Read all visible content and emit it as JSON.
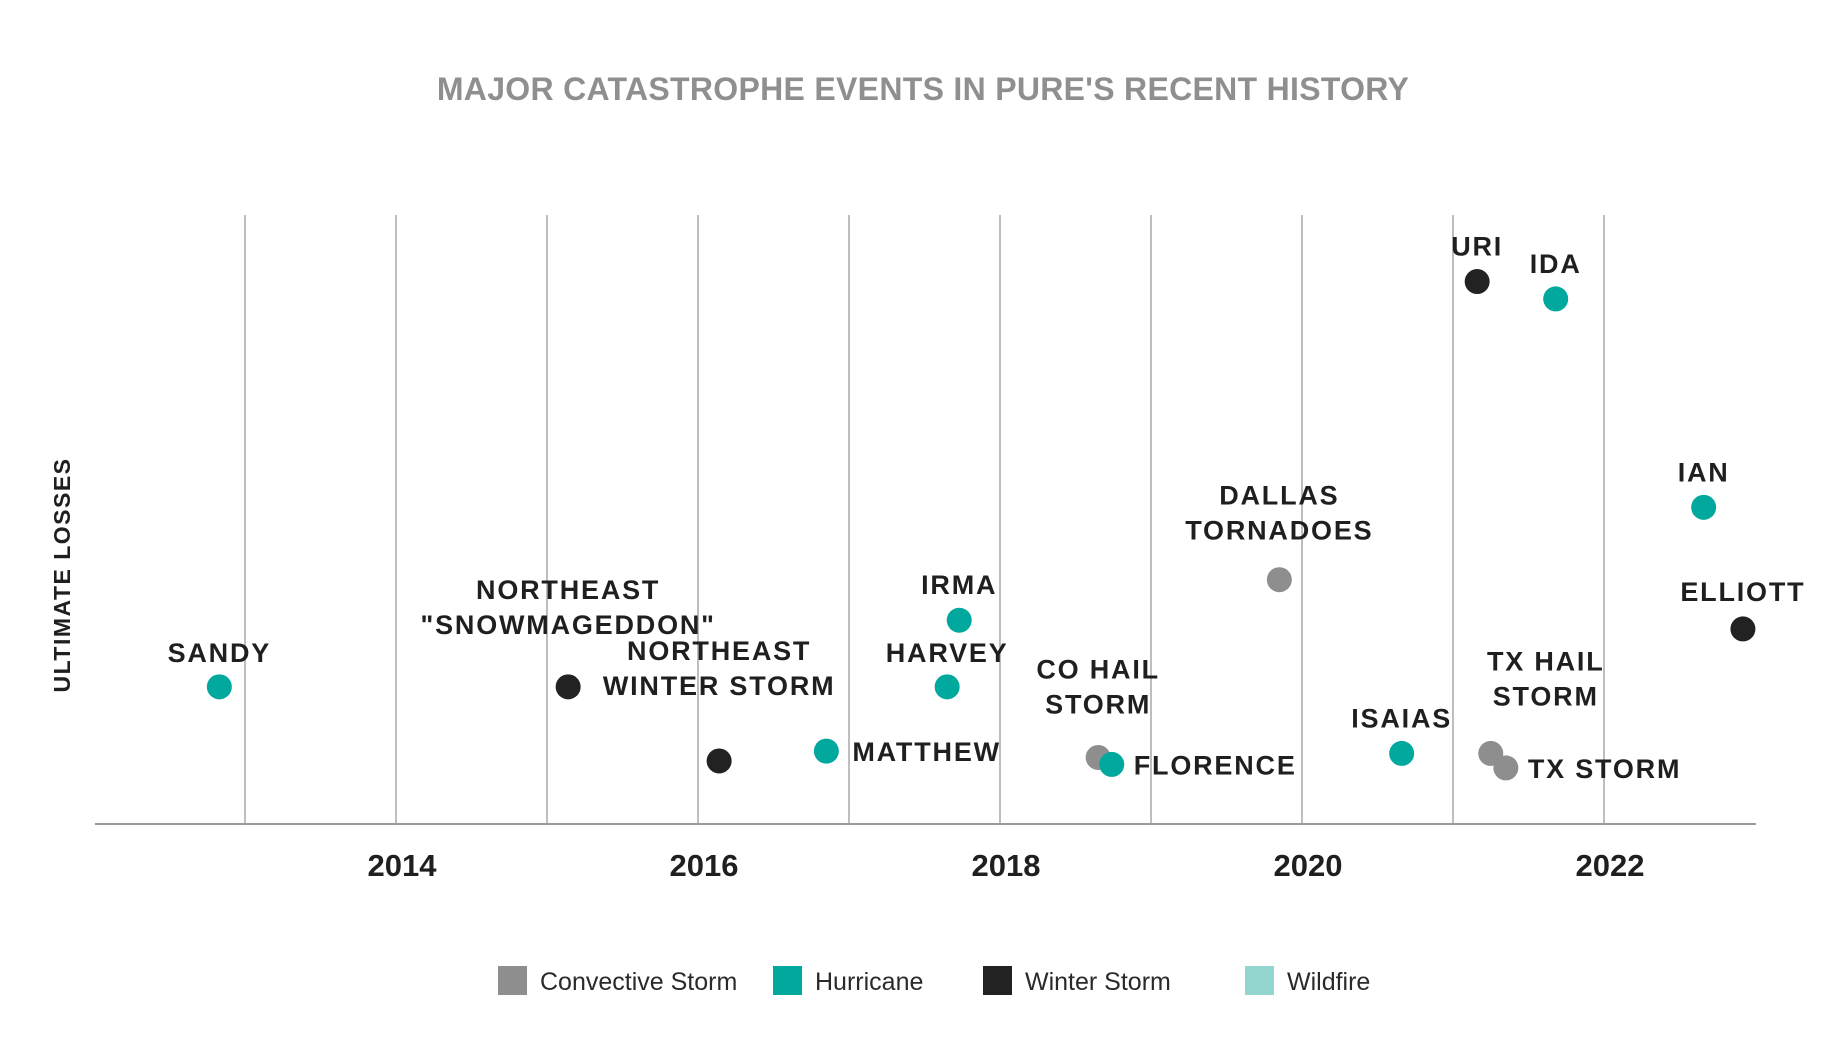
{
  "chart_data": {
    "type": "scatter",
    "title": "MAJOR CATASTROPHE EVENTS IN PURE'S RECENT HISTORY",
    "xlabel": "",
    "ylabel": "ULTIMATE LOSSES",
    "xlim": [
      2012.0,
      2023.0
    ],
    "ylim": [
      0,
      100
    ],
    "x_ticks": [
      2014,
      2016,
      2018,
      2020,
      2022
    ],
    "x_tick_labels": [
      "2014",
      "2016",
      "2018",
      "2020",
      "2022"
    ],
    "x_gridlines": [
      2013,
      2014,
      2015,
      2016,
      2017,
      2018,
      2019,
      2020,
      2021,
      2022
    ],
    "grid": "vertical",
    "y_ticks_shown": false,
    "legend_position": "bottom-center",
    "legend": [
      {
        "name": "Convective Storm",
        "color": "#8e8e8e"
      },
      {
        "name": "Hurricane",
        "color": "#00a89d"
      },
      {
        "name": "Winter Storm",
        "color": "#222222"
      },
      {
        "name": "Wildfire",
        "color": "#93d5cf"
      }
    ],
    "series": [
      {
        "name": "Convective Storm",
        "color": "#8e8e8e",
        "points": [
          {
            "label": [
              "DALLAS",
              "TORNADOES"
            ],
            "x": 2019.85,
            "y": 41.5
          },
          {
            "label": [
              "CO HAIL",
              "STORM"
            ],
            "x": 2018.65,
            "y": 10.8
          },
          {
            "label": [
              "TX HAIL",
              "STORM"
            ],
            "x": 2021.25,
            "y": 11.5
          },
          {
            "label": [
              "TX STORM"
            ],
            "x": 2021.35,
            "y": 9.0
          }
        ]
      },
      {
        "name": "Hurricane",
        "color": "#00a89d",
        "points": [
          {
            "label": [
              "SANDY"
            ],
            "x": 2012.83,
            "y": 23.0
          },
          {
            "label": [
              "MATTHEW"
            ],
            "x": 2016.85,
            "y": 11.9
          },
          {
            "label": [
              "HARVEY"
            ],
            "x": 2017.65,
            "y": 23.0
          },
          {
            "label": [
              "IRMA"
            ],
            "x": 2017.73,
            "y": 34.5
          },
          {
            "label": [
              "FLORENCE"
            ],
            "x": 2018.74,
            "y": 9.6
          },
          {
            "label": [
              "ISAIAS"
            ],
            "x": 2020.66,
            "y": 11.5
          },
          {
            "label": [
              "IDA"
            ],
            "x": 2021.68,
            "y": 90.0
          },
          {
            "label": [
              "IAN"
            ],
            "x": 2022.66,
            "y": 54.0
          }
        ]
      },
      {
        "name": "Winter Storm",
        "color": "#222222",
        "points": [
          {
            "label": [
              "NORTHEAST",
              "\"SNOWMAGEDDON\""
            ],
            "x": 2015.14,
            "y": 23.0
          },
          {
            "label": [
              "NORTHEAST",
              "WINTER STORM"
            ],
            "x": 2016.14,
            "y": 10.2
          },
          {
            "label": [
              "URI"
            ],
            "x": 2021.16,
            "y": 93.0
          },
          {
            "label": [
              "ELLIOTT"
            ],
            "x": 2022.92,
            "y": 33.0
          }
        ]
      },
      {
        "name": "Wildfire",
        "color": "#93d5cf",
        "points": []
      }
    ]
  }
}
